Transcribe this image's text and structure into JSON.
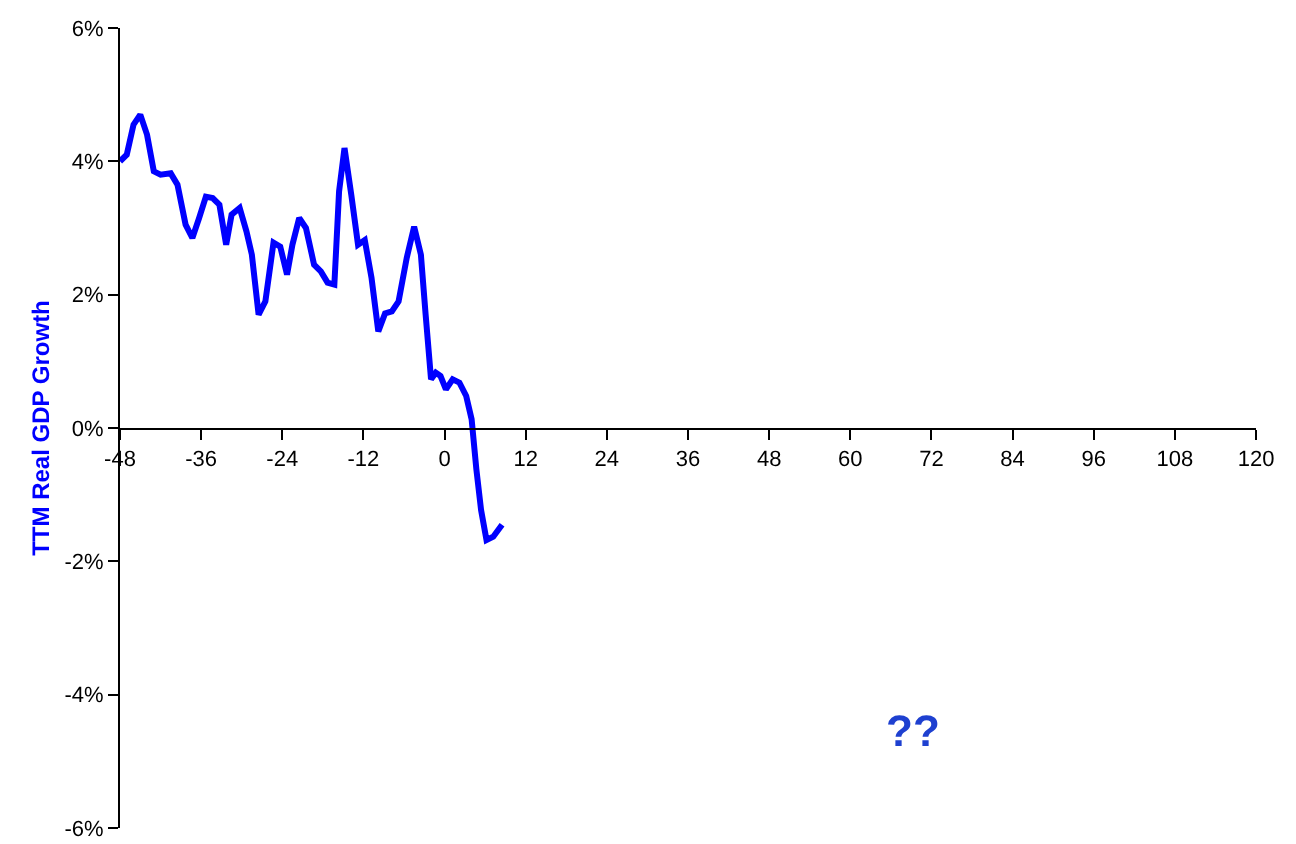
{
  "chart_data": {
    "type": "line",
    "ylabel": "TTM Real GDP Growth",
    "xlim": [
      -48,
      120
    ],
    "xticks": [
      -48,
      -36,
      -24,
      -12,
      0,
      12,
      24,
      36,
      48,
      60,
      72,
      84,
      96,
      108,
      120
    ],
    "ylim": [
      -6,
      6
    ],
    "yticks": [
      {
        "value": -6,
        "label": "-6%"
      },
      {
        "value": -4,
        "label": "-4%"
      },
      {
        "value": -2,
        "label": "-2%"
      },
      {
        "value": 0,
        "label": "0%"
      },
      {
        "value": 2,
        "label": "2%"
      },
      {
        "value": 4,
        "label": "4%"
      },
      {
        "value": 6,
        "label": "6%"
      }
    ],
    "grid": false,
    "marker": "none",
    "line_style": "solid",
    "annotations": [
      "??"
    ],
    "series": [
      {
        "color": "#0000ff",
        "x": [
          -48,
          -47,
          -46,
          -45,
          -44,
          -43,
          -42,
          -40.5,
          -39.5,
          -38.3,
          -37.3,
          -36.3,
          -35.3,
          -34.3,
          -33.3,
          -32.3,
          -31.5,
          -30.3,
          -29.3,
          -28.5,
          -27.5,
          -26.5,
          -25.3,
          -24.3,
          -23.3,
          -22.5,
          -21.5,
          -20.5,
          -19.3,
          -18.3,
          -17.3,
          -16.3,
          -15.6,
          -14.8,
          -13.8,
          -12.8,
          -11.8,
          -10.8,
          -9.8,
          -8.8,
          -7.8,
          -6.8,
          -5.6,
          -4.5,
          -3.5,
          -2.8,
          -2,
          -1.3,
          -0.6,
          0.2,
          1.2,
          2.2,
          3.2,
          4,
          4.7,
          5.4,
          6.2,
          7.2,
          8.5
        ],
        "values": [
          4.0,
          4.1,
          4.55,
          4.7,
          4.4,
          3.85,
          3.8,
          3.82,
          3.65,
          3.05,
          2.85,
          3.15,
          3.47,
          3.45,
          3.35,
          2.75,
          3.2,
          3.3,
          2.95,
          2.6,
          1.7,
          1.9,
          2.78,
          2.72,
          2.3,
          2.75,
          3.15,
          3.0,
          2.45,
          2.35,
          2.18,
          2.15,
          3.55,
          4.2,
          3.5,
          2.75,
          2.82,
          2.25,
          1.45,
          1.72,
          1.75,
          1.9,
          2.55,
          3.02,
          2.6,
          1.7,
          0.73,
          0.83,
          0.78,
          0.58,
          0.73,
          0.68,
          0.48,
          0.13,
          -0.62,
          -1.23,
          -1.68,
          -1.63,
          -1.45
        ]
      }
    ]
  }
}
